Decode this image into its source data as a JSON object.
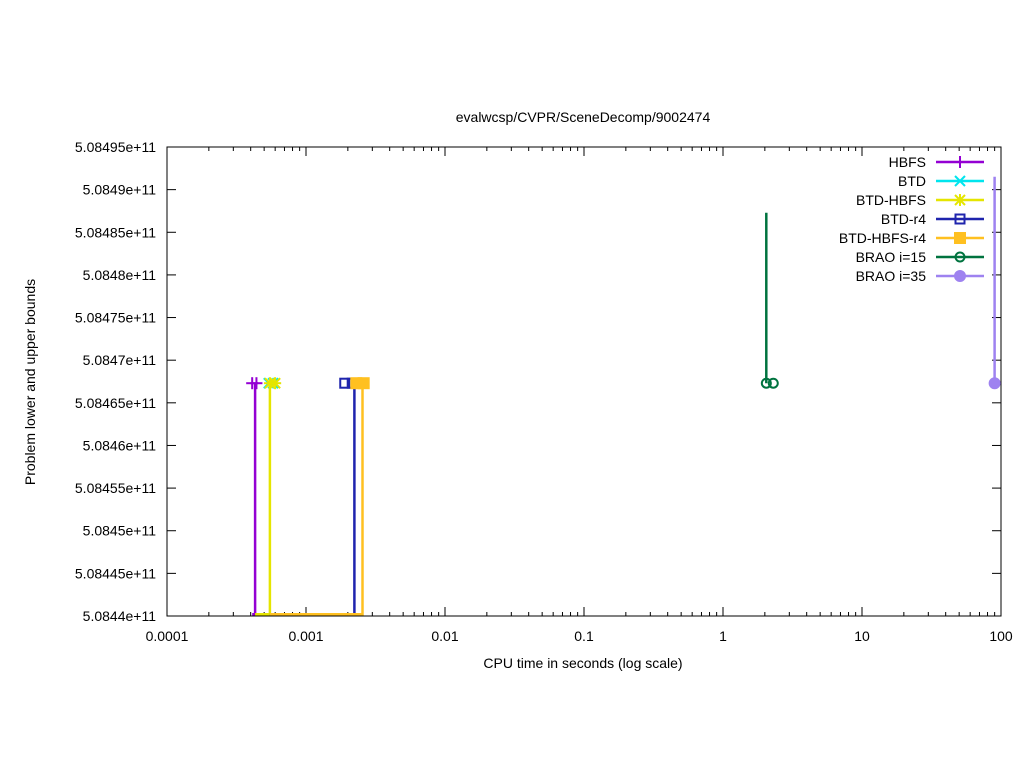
{
  "chart_data": {
    "type": "line",
    "title": "evalwcsp/CVPR/SceneDecomp/9002474",
    "xlabel": "CPU time in seconds (log scale)",
    "ylabel": "Problem lower and upper bounds",
    "xscale": "log",
    "xlim": [
      0.0001,
      100
    ],
    "ylim": [
      508440000000,
      508495000000
    ],
    "x_ticks": [
      {
        "value": 0.0001,
        "label": "0.0001"
      },
      {
        "value": 0.001,
        "label": "0.001"
      },
      {
        "value": 0.01,
        "label": "0.01"
      },
      {
        "value": 0.1,
        "label": "0.1"
      },
      {
        "value": 1,
        "label": "1"
      },
      {
        "value": 10,
        "label": "10"
      },
      {
        "value": 100,
        "label": "100"
      }
    ],
    "y_ticks": [
      {
        "value": 508440000000,
        "label": "5.0844e+11"
      },
      {
        "value": 508445000000,
        "label": "5.08445e+11"
      },
      {
        "value": 508450000000,
        "label": "5.0845e+11"
      },
      {
        "value": 508455000000,
        "label": "5.08455e+11"
      },
      {
        "value": 508460000000,
        "label": "5.0846e+11"
      },
      {
        "value": 508465000000,
        "label": "5.08465e+11"
      },
      {
        "value": 508470000000,
        "label": "5.0847e+11"
      },
      {
        "value": 508475000000,
        "label": "5.08475e+11"
      },
      {
        "value": 508480000000,
        "label": "5.0848e+11"
      },
      {
        "value": 508485000000,
        "label": "5.08485e+11"
      },
      {
        "value": 508490000000,
        "label": "5.0849e+11"
      },
      {
        "value": 508495000000,
        "label": "5.08495e+11"
      }
    ],
    "grid": false,
    "legend_position": "top-right",
    "series": [
      {
        "name": "HBFS",
        "color": "#9400d3",
        "marker": "plus",
        "lines": [
          [
            [
              0.00041,
              508440200000
            ],
            [
              0.00043,
              508440200000
            ],
            [
              0.00043,
              508467300000
            ]
          ]
        ],
        "points": [
          [
            0.00041,
            508467300000
          ],
          [
            0.00044,
            508467300000
          ]
        ]
      },
      {
        "name": "BTD",
        "color": "#00e5ee",
        "marker": "cross",
        "lines": [],
        "points": [
          [
            0.00054,
            508467300000
          ],
          [
            0.00058,
            508467300000
          ]
        ]
      },
      {
        "name": "BTD-HBFS",
        "color": "#e5e500",
        "marker": "star",
        "lines": [
          [
            [
              0.00043,
              508440200000
            ],
            [
              0.00055,
              508440200000
            ],
            [
              0.00055,
              508467300000
            ]
          ]
        ],
        "points": [
          [
            0.00055,
            508467300000
          ],
          [
            0.0006,
            508467300000
          ]
        ]
      },
      {
        "name": "BTD-r4",
        "color": "#1f24ad",
        "marker": "open-square",
        "lines": [
          [
            [
              0.00055,
              508440200000
            ],
            [
              0.00223,
              508440200000
            ],
            [
              0.00223,
              508467300000
            ]
          ]
        ],
        "points": [
          [
            0.0019,
            508467300000
          ],
          [
            0.00215,
            508467300000
          ]
        ]
      },
      {
        "name": "BTD-HBFS-r4",
        "color": "#ffc020",
        "marker": "filled-square",
        "lines": [
          [
            [
              0.00055,
              508440200000
            ],
            [
              0.00255,
              508440200000
            ],
            [
              0.00255,
              508467300000
            ]
          ]
        ],
        "points": [
          [
            0.0023,
            508467300000
          ],
          [
            0.0026,
            508467300000
          ]
        ]
      },
      {
        "name": "BRAO i=15",
        "color": "#00733f",
        "marker": "open-circle",
        "lines": [
          [
            [
              2.05,
              508467300000
            ],
            [
              2.05,
              508487300000
            ]
          ]
        ],
        "points": [
          [
            2.05,
            508467300000
          ],
          [
            2.3,
            508467300000
          ]
        ]
      },
      {
        "name": "BRAO i=35",
        "color": "#9e82f0",
        "marker": "filled-circle",
        "lines": [
          [
            [
              90,
              508467300000
            ],
            [
              90,
              508491500000
            ]
          ]
        ],
        "points": [
          [
            90,
            508467300000
          ]
        ]
      }
    ]
  }
}
